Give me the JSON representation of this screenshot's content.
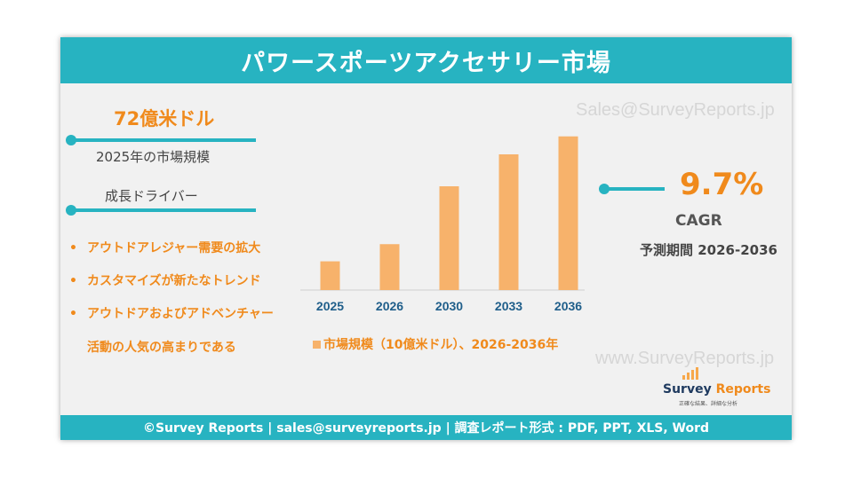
{
  "header": {
    "title": "パワースポーツアクセサリー市場"
  },
  "footer": {
    "text": "©Survey Reports | sales@surveyreports.jp |  調査レポート形式 : PDF, PPT, XLS, Word"
  },
  "watermarks": {
    "top": "Sales@SurveyReports.jp",
    "bottom": "www.SurveyReports.jp"
  },
  "market": {
    "value": "72億米ドル",
    "label": "2025年の市場規模"
  },
  "drivers": {
    "title": "成長ドライバー",
    "items": [
      {
        "text": "アウトドアレジャー需要の拡大",
        "cont": ""
      },
      {
        "text": "カスタマイズが新たなトレンド",
        "cont": ""
      },
      {
        "text": "アウトドアおよびアドベンチャー",
        "cont": "活動の人気の高まりである"
      }
    ]
  },
  "cagr": {
    "value": "9.7%",
    "label": "CAGR",
    "period": "予測期間 2026-2036"
  },
  "logo": {
    "name_a": "Survey ",
    "name_b": "Reports",
    "tagline": "正確な結果、詳細な分析"
  },
  "colors": {
    "accent": "#27b3c1",
    "orange": "#f08a1c",
    "bar": "#f7b26b"
  },
  "chart_data": {
    "type": "bar",
    "categories": [
      "2025",
      "2026",
      "2030",
      "2033",
      "2036"
    ],
    "values": [
      7.2,
      11.5,
      26.0,
      34.0,
      38.5
    ],
    "legend": "市場規模（10億米ドル）、2026-2036年",
    "ylim": [
      0,
      40
    ],
    "grid": false,
    "legend_position": "bottom"
  }
}
